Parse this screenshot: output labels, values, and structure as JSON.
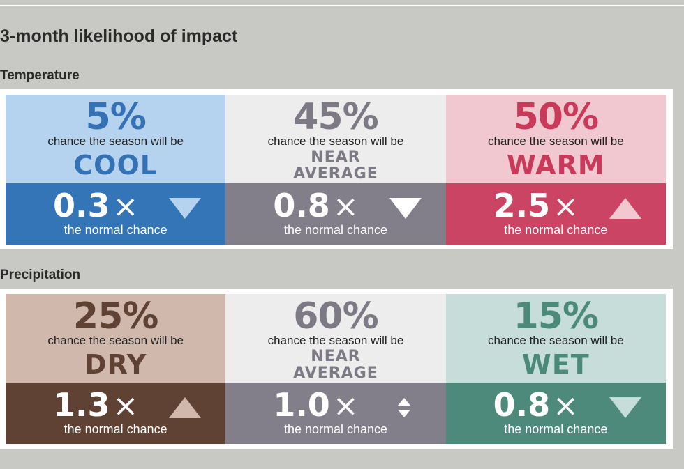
{
  "page_title": "3-month likelihood of impact",
  "sections": [
    {
      "title": "Temperature",
      "cards": [
        {
          "pct": "5%",
          "chance": "chance the season will be",
          "cat": [
            "COOL"
          ],
          "mult": "0.3",
          "x": "×",
          "normal": "the normal chance",
          "arrow": "down",
          "colors": {
            "top": "#b5d3ef",
            "bottom": "#3475b8",
            "text": "#3572b5",
            "arrow": "#b5d3ef"
          }
        },
        {
          "pct": "45%",
          "chance": "chance the season will be",
          "cat": [
            "NEAR",
            "AVERAGE"
          ],
          "mult": "0.8",
          "x": "×",
          "normal": "the normal chance",
          "arrow": "down",
          "colors": {
            "top": "#ededed",
            "bottom": "#827f8b",
            "text": "#7d7a85",
            "arrow": "#ffffff"
          }
        },
        {
          "pct": "50%",
          "chance": "chance the season will be",
          "cat": [
            "WARM"
          ],
          "mult": "2.5",
          "x": "×",
          "normal": "the normal chance",
          "arrow": "up",
          "colors": {
            "top": "#f1c8d0",
            "bottom": "#cb4463",
            "text": "#c8395a",
            "arrow": "#f1c8d0"
          }
        }
      ]
    },
    {
      "title": "Precipitation",
      "cards": [
        {
          "pct": "25%",
          "chance": "chance the season will be",
          "cat": [
            "DRY"
          ],
          "mult": "1.3",
          "x": "×",
          "normal": "the normal chance",
          "arrow": "up",
          "colors": {
            "top": "#d0b8ad",
            "bottom": "#5f4234",
            "text": "#5f4234",
            "arrow": "#d0b8ad"
          }
        },
        {
          "pct": "60%",
          "chance": "chance the season will be",
          "cat": [
            "NEAR",
            "AVERAGE"
          ],
          "mult": "1.0",
          "x": "×",
          "normal": "the normal chance",
          "arrow": "updown",
          "colors": {
            "top": "#ededed",
            "bottom": "#827f8b",
            "text": "#7d7a85",
            "arrow": "#ffffff"
          }
        },
        {
          "pct": "15%",
          "chance": "chance the season will be",
          "cat": [
            "WET"
          ],
          "mult": "0.8",
          "x": "×",
          "normal": "the normal chance",
          "arrow": "down",
          "colors": {
            "top": "#c6ddd9",
            "bottom": "#4d8a7b",
            "text": "#4b8a79",
            "arrow": "#c6ddd9"
          }
        }
      ]
    }
  ]
}
